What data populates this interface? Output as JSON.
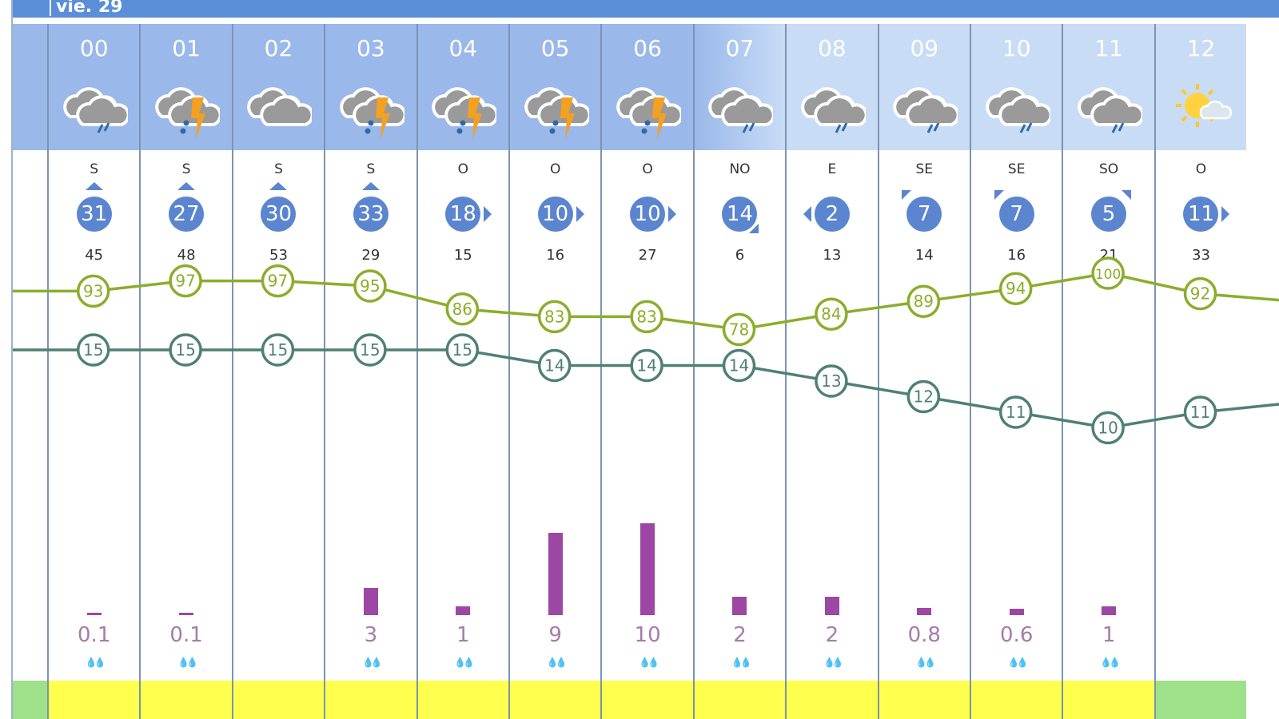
{
  "header": {
    "day": "vie. 29"
  },
  "colors": {
    "temperature": "#4f8074",
    "humidity": "#8aae2b",
    "precip_bar": "#9b47a3",
    "wind_badge": "#5b85cf",
    "head_bg": "#9ab8ea",
    "head_bg_light": "#c8dcf6",
    "strip_yellow": "#ffff4d",
    "strip_green": "#9fe08a"
  },
  "hours": [
    {
      "hour": "00",
      "icon": "cloud-rain",
      "dir": "S",
      "wind": "31",
      "arrow": "up",
      "gust": "45",
      "humidity": 93,
      "temp": 15,
      "precip": "0.1",
      "strip": "yellow"
    },
    {
      "hour": "01",
      "icon": "cloud-storm",
      "dir": "S",
      "wind": "27",
      "arrow": "up",
      "gust": "48",
      "humidity": 97,
      "temp": 15,
      "precip": "0.1",
      "strip": "yellow"
    },
    {
      "hour": "02",
      "icon": "cloud",
      "dir": "S",
      "wind": "30",
      "arrow": "up",
      "gust": "53",
      "humidity": 97,
      "temp": 15,
      "precip": "",
      "strip": "yellow"
    },
    {
      "hour": "03",
      "icon": "cloud-storm",
      "dir": "S",
      "wind": "33",
      "arrow": "up",
      "gust": "29",
      "humidity": 95,
      "temp": 15,
      "precip": "3",
      "strip": "yellow"
    },
    {
      "hour": "04",
      "icon": "cloud-storm",
      "dir": "O",
      "wind": "18",
      "arrow": "right",
      "gust": "15",
      "humidity": 86,
      "temp": 15,
      "precip": "1",
      "strip": "yellow"
    },
    {
      "hour": "05",
      "icon": "cloud-storm",
      "dir": "O",
      "wind": "10",
      "arrow": "right",
      "gust": "16",
      "humidity": 83,
      "temp": 14,
      "precip": "9",
      "strip": "yellow"
    },
    {
      "hour": "06",
      "icon": "cloud-storm",
      "dir": "O",
      "wind": "10",
      "arrow": "right",
      "gust": "27",
      "humidity": 83,
      "temp": 14,
      "precip": "10",
      "strip": "yellow"
    },
    {
      "hour": "07",
      "icon": "cloud-rain",
      "dir": "NO",
      "wind": "14",
      "arrow": "down-right",
      "gust": "6",
      "humidity": 78,
      "temp": 14,
      "precip": "2",
      "strip": "yellow"
    },
    {
      "hour": "08",
      "icon": "cloud-rain",
      "dir": "E",
      "wind": "2",
      "arrow": "left",
      "gust": "13",
      "humidity": 84,
      "temp": 13,
      "precip": "2",
      "strip": "yellow"
    },
    {
      "hour": "09",
      "icon": "cloud-rain",
      "dir": "SE",
      "wind": "7",
      "arrow": "up-left",
      "gust": "14",
      "humidity": 89,
      "temp": 12,
      "precip": "0.8",
      "strip": "yellow"
    },
    {
      "hour": "10",
      "icon": "cloud-rain",
      "dir": "SE",
      "wind": "7",
      "arrow": "up-left",
      "gust": "16",
      "humidity": 94,
      "temp": 11,
      "precip": "0.6",
      "strip": "yellow"
    },
    {
      "hour": "11",
      "icon": "cloud-rain",
      "dir": "SO",
      "wind": "5",
      "arrow": "up-right",
      "gust": "21",
      "humidity": 100,
      "temp": 10,
      "precip": "1",
      "strip": "yellow"
    },
    {
      "hour": "12",
      "icon": "sun-cloud",
      "dir": "O",
      "wind": "11",
      "arrow": "right",
      "gust": "33",
      "humidity": 92,
      "temp": 11,
      "precip": "",
      "strip": "green"
    }
  ]
}
